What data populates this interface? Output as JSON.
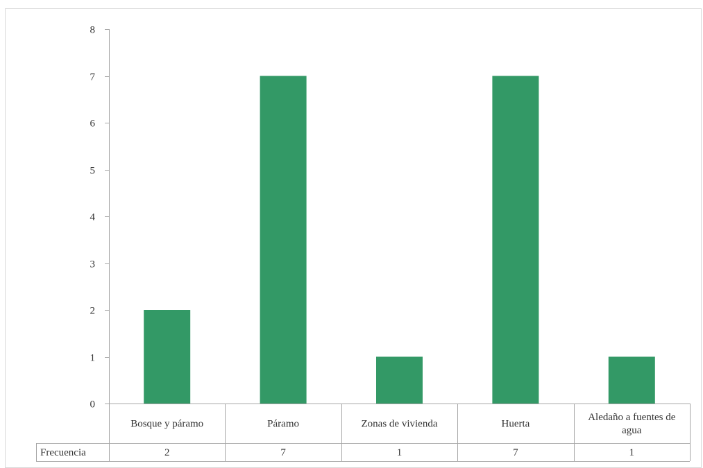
{
  "chart_data": {
    "type": "bar",
    "categories": [
      "Bosque y páramo",
      "Páramo",
      "Zonas de vivienda",
      "Huerta",
      "Aledaño a fuentes de agua"
    ],
    "series": [
      {
        "name": "Frecuencia",
        "values": [
          2,
          7,
          1,
          7,
          1
        ]
      }
    ],
    "ylim": [
      0,
      8
    ],
    "yticks": [
      0,
      1,
      2,
      3,
      4,
      5,
      6,
      7,
      8
    ],
    "bar_color": "#339966",
    "data_table": true,
    "grid": false,
    "legend": "none",
    "title": "",
    "xlabel": "",
    "ylabel": ""
  }
}
